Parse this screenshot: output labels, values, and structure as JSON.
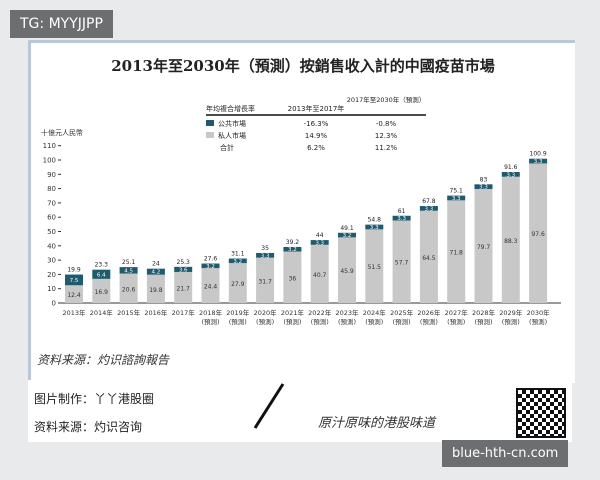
{
  "watermark_tag": "TG: MYYJJPP",
  "source_note": "资料来源：灼识諮詢報告",
  "footer": {
    "made_by": "图片制作：丫丫港股圈",
    "source": "资料来源：灼识咨询",
    "slogan": "原汁原味的港股味道"
  },
  "url_badge": "blue-hth-cn.com",
  "colors": {
    "public": "#1f5b6e",
    "private": "#c8c8c8"
  },
  "chart_data": {
    "type": "bar",
    "stacked": true,
    "title": "2013年至2030年（預測）按銷售收入計的中國疫苗市場",
    "ylabel": "十億元人民幣",
    "ylim": [
      0,
      110
    ],
    "yticks": [
      0,
      10,
      20,
      30,
      40,
      50,
      60,
      70,
      80,
      90,
      100,
      110
    ],
    "categories": [
      "2013年",
      "2014年",
      "2015年",
      "2016年",
      "2017年",
      "2018年(預測)",
      "2019年(預測)",
      "2020年(預測)",
      "2021年(預測)",
      "2022年(預測)",
      "2023年(預測)",
      "2024年(預測)",
      "2025年(預測)",
      "2026年(預測)",
      "2027年(預測)",
      "2028年(預測)",
      "2029年(預測)",
      "2030年(預測)"
    ],
    "series": [
      {
        "name": "私人市場",
        "values": [
          12.4,
          16.9,
          20.6,
          19.8,
          21.7,
          24.4,
          27.9,
          31.7,
          36.0,
          40.7,
          45.9,
          51.5,
          57.7,
          64.5,
          71.8,
          79.7,
          88.3,
          97.6
        ]
      },
      {
        "name": "公共市場",
        "values": [
          7.5,
          6.4,
          4.5,
          4.2,
          3.6,
          3.2,
          3.2,
          3.3,
          3.2,
          3.3,
          3.2,
          3.3,
          3.3,
          3.3,
          3.3,
          3.3,
          3.3,
          3.3
        ]
      }
    ],
    "totals": [
      19.9,
      23.3,
      25.1,
      24.0,
      25.3,
      27.6,
      31.1,
      35.0,
      39.2,
      44.0,
      49.1,
      54.8,
      61.0,
      67.8,
      75.1,
      83.0,
      91.6,
      100.9
    ],
    "cagr_table": {
      "header": [
        "年均複合增長率",
        "2013年至2017年",
        "2017年至2030年（預測）"
      ],
      "rows": [
        [
          "公共市場",
          "-16.3%",
          "-0.8%"
        ],
        [
          "私人市場",
          "14.9%",
          "12.3%"
        ],
        [
          "合計",
          "6.2%",
          "11.2%"
        ]
      ]
    }
  }
}
